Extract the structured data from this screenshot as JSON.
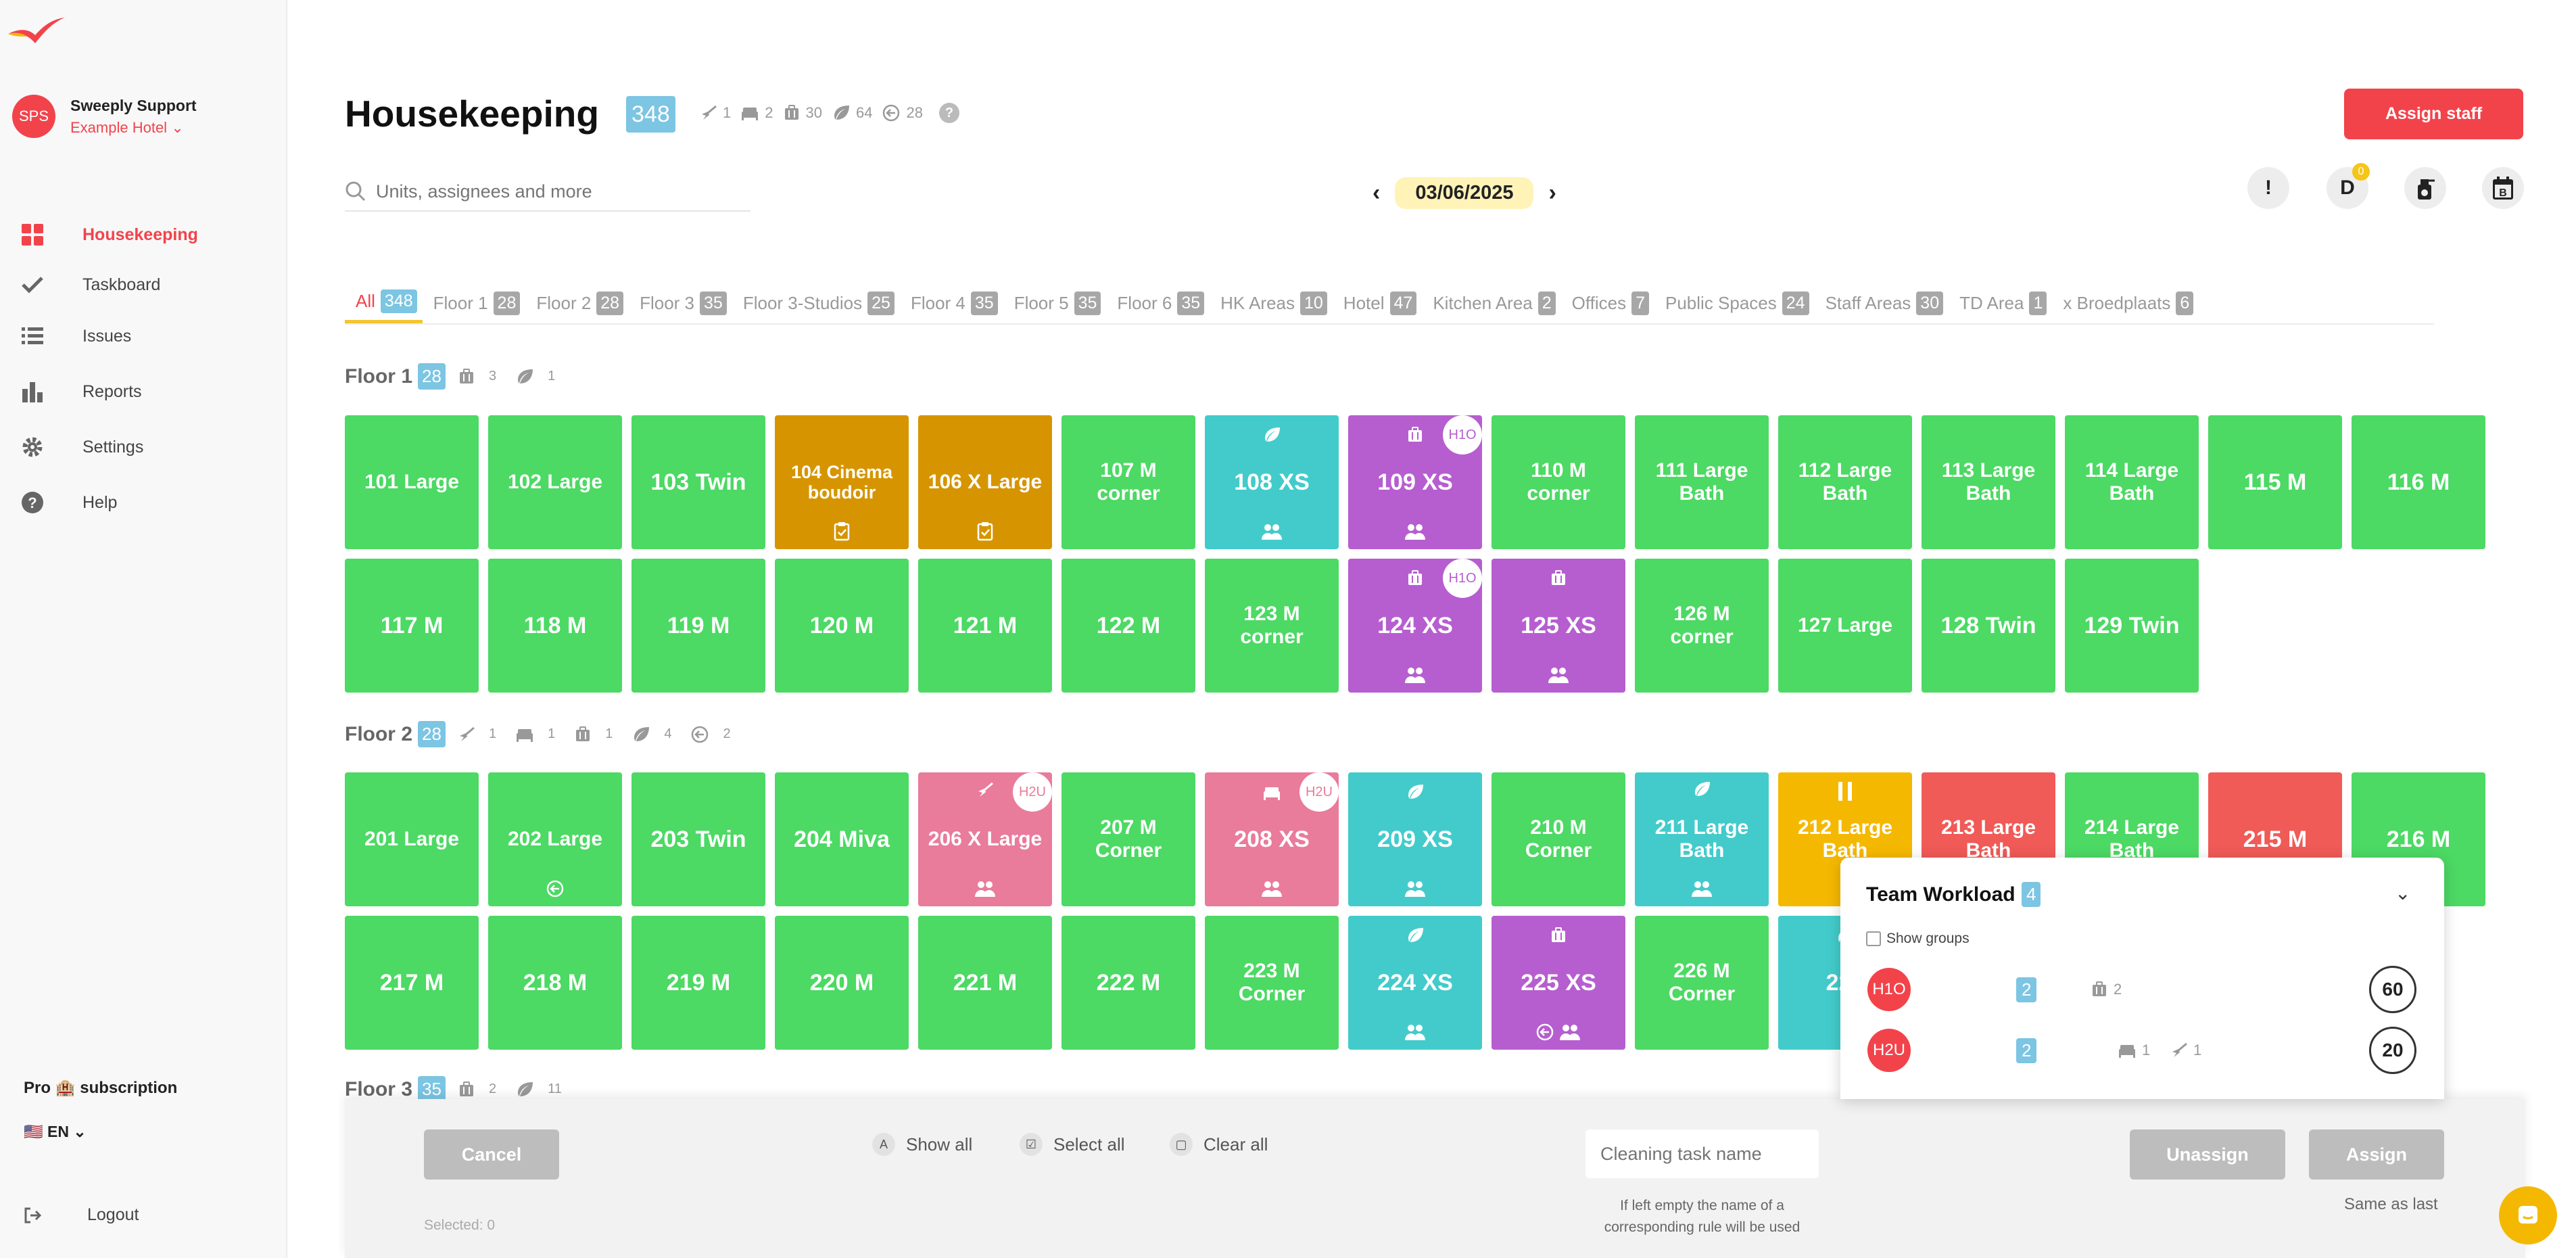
{
  "colors": {
    "accent": "#f2434b",
    "clean": "#4cd964",
    "in_progress": "#d69500",
    "stayover": "#43cbcb",
    "checkout": "#b65ecf",
    "pink": "#e97b9b",
    "paused": "#f5b800",
    "dirty": "#f05a57",
    "count_badge": "#7cc5e3"
  },
  "sidebar": {
    "user_initials": "SPS",
    "user_name": "Sweeply Support",
    "hotel": "Example Hotel",
    "nav": [
      {
        "label": "Housekeeping",
        "icon": "grid-icon"
      },
      {
        "label": "Taskboard",
        "icon": "check-icon"
      },
      {
        "label": "Issues",
        "icon": "list-icon"
      },
      {
        "label": "Reports",
        "icon": "bar-chart-icon"
      },
      {
        "label": "Settings",
        "icon": "gear-icon"
      },
      {
        "label": "Help",
        "icon": "help-icon"
      }
    ],
    "subscription": "Pro 🏨 subscription",
    "language": "🇺🇸 EN",
    "logout": "Logout"
  },
  "header": {
    "title": "Housekeeping",
    "total": "348",
    "stats": [
      {
        "icon": "broom-icon",
        "value": "1"
      },
      {
        "icon": "bed-icon",
        "value": "2"
      },
      {
        "icon": "luggage-icon",
        "value": "30"
      },
      {
        "icon": "leaf-icon",
        "value": "64"
      },
      {
        "icon": "arrow-left-circle-icon",
        "value": "28"
      }
    ],
    "help": "?",
    "assign_staff": "Assign staff",
    "search_placeholder": "Units, assignees and more",
    "date": "03/06/2025",
    "icon_buttons": [
      {
        "label": "!",
        "icon": "alert-icon"
      },
      {
        "label": "D",
        "icon": "d-icon",
        "badge": "0"
      },
      {
        "label": "",
        "icon": "spray-icon"
      },
      {
        "label": "",
        "icon": "calendar-b-icon"
      }
    ]
  },
  "tabs": [
    {
      "label": "All",
      "count": "348"
    },
    {
      "label": "Floor 1",
      "count": "28"
    },
    {
      "label": "Floor 2",
      "count": "28"
    },
    {
      "label": "Floor 3",
      "count": "35"
    },
    {
      "label": "Floor 3-Studios",
      "count": "25"
    },
    {
      "label": "Floor 4",
      "count": "35"
    },
    {
      "label": "Floor 5",
      "count": "35"
    },
    {
      "label": "Floor 6",
      "count": "35"
    },
    {
      "label": "HK Areas",
      "count": "10"
    },
    {
      "label": "Hotel",
      "count": "47"
    },
    {
      "label": "Kitchen Area",
      "count": "2"
    },
    {
      "label": "Offices",
      "count": "7"
    },
    {
      "label": "Public Spaces",
      "count": "24"
    },
    {
      "label": "Staff Areas",
      "count": "30"
    },
    {
      "label": "TD Area",
      "count": "1"
    },
    {
      "label": "x Broedplaats",
      "count": "6"
    }
  ],
  "floors": [
    {
      "name": "Floor 1",
      "count": "28",
      "stats": [
        {
          "icon": "luggage-icon",
          "value": "3"
        },
        {
          "icon": "leaf-icon",
          "value": "1"
        }
      ],
      "units": [
        {
          "name": "101 Large",
          "color": "g"
        },
        {
          "name": "102 Large",
          "color": "g"
        },
        {
          "name": "103 Twin",
          "color": "g"
        },
        {
          "name": "104 Cinema boudoir",
          "color": "o",
          "bottom": [
            "clipboard-icon"
          ]
        },
        {
          "name": "106 X Large",
          "color": "o",
          "bottom": [
            "clipboard-icon"
          ]
        },
        {
          "name": "107 M corner",
          "color": "g"
        },
        {
          "name": "108 XS",
          "color": "c",
          "top": "leaf-icon",
          "bottom": [
            "guests-icon"
          ]
        },
        {
          "name": "109 XS",
          "color": "p",
          "top": "luggage-icon",
          "bottom": [
            "guests-icon"
          ],
          "assignee": "H1O"
        },
        {
          "name": "110 M corner",
          "color": "g"
        },
        {
          "name": "111 Large Bath",
          "color": "g"
        },
        {
          "name": "112 Large Bath",
          "color": "g"
        },
        {
          "name": "113 Large Bath",
          "color": "g"
        },
        {
          "name": "114 Large Bath",
          "color": "g"
        },
        {
          "name": "115 M",
          "color": "g"
        },
        {
          "name": "116 M",
          "color": "g"
        },
        {
          "name": "117 M",
          "color": "g"
        },
        {
          "name": "118 M",
          "color": "g"
        },
        {
          "name": "119 M",
          "color": "g"
        },
        {
          "name": "120 M",
          "color": "g"
        },
        {
          "name": "121 M",
          "color": "g"
        },
        {
          "name": "122 M",
          "color": "g"
        },
        {
          "name": "123 M corner",
          "color": "g"
        },
        {
          "name": "124 XS",
          "color": "p",
          "top": "luggage-icon",
          "bottom": [
            "guests-icon"
          ],
          "assignee": "H1O"
        },
        {
          "name": "125 XS",
          "color": "p",
          "top": "luggage-icon",
          "bottom": [
            "guests-icon"
          ]
        },
        {
          "name": "126 M corner",
          "color": "g"
        },
        {
          "name": "127 Large",
          "color": "g"
        },
        {
          "name": "128 Twin",
          "color": "g"
        },
        {
          "name": "129 Twin",
          "color": "g"
        }
      ]
    },
    {
      "name": "Floor 2",
      "count": "28",
      "stats": [
        {
          "icon": "broom-icon",
          "value": "1"
        },
        {
          "icon": "bed-icon",
          "value": "1"
        },
        {
          "icon": "luggage-icon",
          "value": "1"
        },
        {
          "icon": "leaf-icon",
          "value": "4"
        },
        {
          "icon": "arrow-left-circle-icon",
          "value": "2"
        }
      ],
      "units": [
        {
          "name": "201 Large",
          "color": "g"
        },
        {
          "name": "202 Large",
          "color": "g",
          "bottom": [
            "arrow-left-circle-icon"
          ]
        },
        {
          "name": "203 Twin",
          "color": "g"
        },
        {
          "name": "204 Miva",
          "color": "g"
        },
        {
          "name": "206 X Large",
          "color": "k",
          "top": "broom-icon",
          "bottom": [
            "guests-icon"
          ],
          "assignee": "H2U"
        },
        {
          "name": "207 M Corner",
          "color": "g"
        },
        {
          "name": "208 XS",
          "color": "k",
          "top": "bed-icon",
          "bottom": [
            "guests-icon"
          ],
          "assignee": "H2U"
        },
        {
          "name": "209 XS",
          "color": "c",
          "top": "leaf-icon",
          "bottom": [
            "guests-icon"
          ]
        },
        {
          "name": "210 M Corner",
          "color": "g"
        },
        {
          "name": "211 Large Bath",
          "color": "c",
          "top": "leaf-icon",
          "bottom": [
            "guests-icon"
          ]
        },
        {
          "name": "212 Large Bath",
          "color": "y",
          "top": "pause-icon"
        },
        {
          "name": "213 Large Bath",
          "color": "r"
        },
        {
          "name": "214 Large Bath",
          "color": "g"
        },
        {
          "name": "215 M",
          "color": "r"
        },
        {
          "name": "216 M",
          "color": "g"
        },
        {
          "name": "217 M",
          "color": "g"
        },
        {
          "name": "218 M",
          "color": "g"
        },
        {
          "name": "219 M",
          "color": "g"
        },
        {
          "name": "220 M",
          "color": "g"
        },
        {
          "name": "221 M",
          "color": "g"
        },
        {
          "name": "222 M",
          "color": "g"
        },
        {
          "name": "223 M Corner",
          "color": "g"
        },
        {
          "name": "224 XS",
          "color": "c",
          "top": "leaf-icon",
          "bottom": [
            "guests-icon"
          ]
        },
        {
          "name": "225 XS",
          "color": "p",
          "top": "luggage-icon",
          "bottom": [
            "arrow-left-circle-icon",
            "guests-icon"
          ]
        },
        {
          "name": "226 M Corner",
          "color": "g"
        },
        {
          "name": "227",
          "color": "c",
          "top": "leaf-icon"
        }
      ]
    },
    {
      "name": "Floor 3",
      "count": "35",
      "stats": [
        {
          "icon": "luggage-icon",
          "value": "2"
        },
        {
          "icon": "leaf-icon",
          "value": "11"
        }
      ],
      "units": []
    }
  ],
  "bottom_bar": {
    "cancel": "Cancel",
    "show_all": "Show all",
    "select_all": "Select all",
    "clear_all": "Clear all",
    "task_placeholder": "Cleaning task name",
    "hint": "If left empty the name of a corresponding rule will be used",
    "unassign": "Unassign",
    "assign": "Assign",
    "same_as_last": "Same as last",
    "selected": "Selected: 0"
  },
  "team_workload": {
    "title": "Team Workload",
    "count": "4",
    "show_groups": "Show groups",
    "members": [
      {
        "initials": "H1O",
        "count": "2",
        "stats": [
          {
            "icon": "luggage-icon",
            "value": "2"
          }
        ],
        "score": "60"
      },
      {
        "initials": "H2U",
        "count": "2",
        "stats": [
          {
            "icon": "bed-icon",
            "value": "1"
          },
          {
            "icon": "broom-icon",
            "value": "1"
          }
        ],
        "score": "20"
      }
    ]
  }
}
